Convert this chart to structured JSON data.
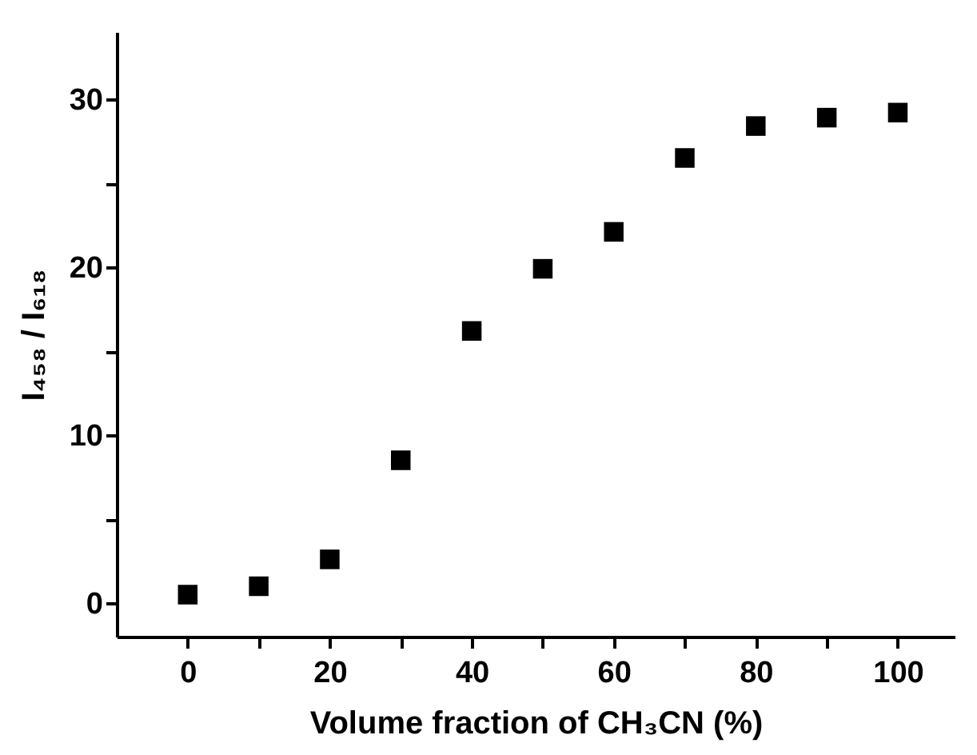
{
  "chart_data": {
    "type": "scatter",
    "xlabel": "Volume fraction of CH₃CN (%)",
    "ylabel": "I₄₅₈ / I₆₁₈",
    "x": [
      0,
      10,
      20,
      30,
      40,
      50,
      60,
      70,
      80,
      90,
      100
    ],
    "series": [
      {
        "color": "#000000",
        "values": [
          0.5,
          1.0,
          2.6,
          8.5,
          16.2,
          19.9,
          22.1,
          26.5,
          28.4,
          28.9,
          29.2
        ]
      }
    ],
    "marker": "square",
    "xlim": [
      -10,
      108
    ],
    "ylim": [
      -2,
      34
    ],
    "xticks": [
      0,
      {
        "value": 10,
        "label": null
      },
      20,
      {
        "value": 30,
        "label": null
      },
      40,
      {
        "value": 50,
        "label": null
      },
      60,
      {
        "value": 70,
        "label": null
      },
      80,
      {
        "value": 90,
        "label": null
      },
      100
    ],
    "yticks": [
      0,
      {
        "value": 5,
        "label": null
      },
      10,
      {
        "value": 15,
        "label": null
      },
      20,
      {
        "value": 25,
        "label": null
      },
      30
    ],
    "grid": false,
    "legend": false
  }
}
